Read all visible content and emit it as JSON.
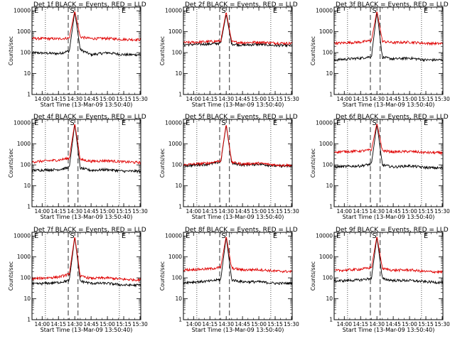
{
  "figure": {
    "background": "#ffffff"
  },
  "colors": {
    "events": "#000000",
    "lld": "#e00000",
    "frame": "#000000"
  },
  "chart_data": [
    {
      "type": "line",
      "title": "Det 1f BLACK = Events, RED = LLD",
      "xlabel": "Start Time (13-Mar-09 13:50:40)",
      "ylabel": "Counts/sec",
      "x_ticks": [
        "14:00",
        "14:15",
        "14:30",
        "14:45",
        "15:00",
        "15:15",
        "15:30"
      ],
      "y_ticks": [
        "1",
        "10",
        "100",
        "1000",
        "10000"
      ],
      "xlim": [
        "13:50:40",
        "15:30:40"
      ],
      "ylim": [
        1,
        15000
      ],
      "yscale": "log",
      "markers": {
        "S": "14:27",
        "E": "15:11"
      },
      "series": [
        {
          "name": "Events",
          "color": "#000000",
          "x": [
            "13:51",
            "14:15",
            "14:25",
            "14:30",
            "14:35",
            "14:45",
            "15:00",
            "15:15",
            "15:30"
          ],
          "y": [
            100,
            90,
            120,
            9000,
            140,
            80,
            100,
            80,
            80
          ]
        },
        {
          "name": "LLD",
          "color": "#e00000",
          "x": [
            "13:51",
            "14:15",
            "14:25",
            "14:30",
            "14:35",
            "14:45",
            "15:00",
            "15:15",
            "15:30"
          ],
          "y": [
            480,
            460,
            500,
            10000,
            560,
            470,
            480,
            430,
            420
          ]
        }
      ]
    },
    {
      "type": "line",
      "title": "Det 2f BLACK = Events, RED = LLD",
      "xlabel": "Start Time (13-Mar-09 13:50:40)",
      "ylabel": "Counts/sec",
      "x_ticks": [
        "14:00",
        "14:15",
        "14:30",
        "14:45",
        "15:00",
        "15:15",
        "15:30"
      ],
      "y_ticks": [
        "1",
        "10",
        "100",
        "1000",
        "10000"
      ],
      "xlim": [
        "13:50:40",
        "15:30:40"
      ],
      "ylim": [
        1,
        15000
      ],
      "yscale": "log",
      "markers": {
        "S": "14:27",
        "E": "15:11"
      },
      "series": [
        {
          "name": "Events",
          "color": "#000000",
          "x": [
            "13:51",
            "14:15",
            "14:25",
            "14:30",
            "14:35",
            "14:45",
            "15:00",
            "15:15",
            "15:30"
          ],
          "y": [
            240,
            260,
            280,
            7000,
            260,
            230,
            250,
            220,
            220
          ]
        },
        {
          "name": "LLD",
          "color": "#e00000",
          "x": [
            "13:51",
            "14:15",
            "14:25",
            "14:30",
            "14:35",
            "14:45",
            "15:00",
            "15:15",
            "15:30"
          ],
          "y": [
            300,
            340,
            360,
            9000,
            330,
            300,
            320,
            290,
            280
          ]
        }
      ]
    },
    {
      "type": "line",
      "title": "Det 3f BLACK = Events, RED = LLD",
      "xlabel": "Start Time (13-Mar-09 13:50:40)",
      "ylabel": "Counts/sec",
      "x_ticks": [
        "14:00",
        "14:15",
        "14:30",
        "14:45",
        "15:00",
        "15:15",
        "15:30"
      ],
      "y_ticks": [
        "1",
        "10",
        "100",
        "1000",
        "10000"
      ],
      "xlim": [
        "13:50:40",
        "15:30:40"
      ],
      "ylim": [
        1,
        15000
      ],
      "yscale": "log",
      "markers": {
        "S": "14:27",
        "E": "15:11"
      },
      "series": [
        {
          "name": "Events",
          "color": "#000000",
          "x": [
            "13:51",
            "14:15",
            "14:25",
            "14:30",
            "14:35",
            "14:45",
            "15:00",
            "15:15",
            "15:30"
          ],
          "y": [
            45,
            55,
            65,
            9000,
            60,
            50,
            55,
            45,
            45
          ]
        },
        {
          "name": "LLD",
          "color": "#e00000",
          "x": [
            "13:51",
            "14:15",
            "14:25",
            "14:30",
            "14:35",
            "14:45",
            "15:00",
            "15:15",
            "15:30"
          ],
          "y": [
            280,
            320,
            380,
            10000,
            350,
            300,
            320,
            280,
            270
          ]
        }
      ]
    },
    {
      "type": "line",
      "title": "Det 4f BLACK = Events, RED = LLD",
      "xlabel": "Start Time (13-Mar-09 13:50:40)",
      "ylabel": "Counts/sec",
      "x_ticks": [
        "14:00",
        "14:15",
        "14:30",
        "14:45",
        "15:00",
        "15:15",
        "15:30"
      ],
      "y_ticks": [
        "1",
        "10",
        "100",
        "1000",
        "10000"
      ],
      "xlim": [
        "13:50:40",
        "15:30:40"
      ],
      "ylim": [
        1,
        15000
      ],
      "yscale": "log",
      "markers": {
        "S": "14:27",
        "E": "15:11"
      },
      "series": [
        {
          "name": "Events",
          "color": "#000000",
          "x": [
            "13:51",
            "14:15",
            "14:25",
            "14:30",
            "14:35",
            "14:45",
            "15:00",
            "15:15",
            "15:30"
          ],
          "y": [
            55,
            60,
            75,
            9000,
            70,
            55,
            60,
            50,
            50
          ]
        },
        {
          "name": "LLD",
          "color": "#e00000",
          "x": [
            "13:51",
            "14:15",
            "14:25",
            "14:30",
            "14:35",
            "14:45",
            "15:00",
            "15:15",
            "15:30"
          ],
          "y": [
            140,
            170,
            210,
            10000,
            180,
            150,
            160,
            140,
            130
          ]
        }
      ]
    },
    {
      "type": "line",
      "title": "Det 5f BLACK = Events, RED = LLD",
      "xlabel": "Start Time (13-Mar-09 13:50:40)",
      "ylabel": "Counts/sec",
      "x_ticks": [
        "14:00",
        "14:15",
        "14:30",
        "14:45",
        "15:00",
        "15:15",
        "15:30"
      ],
      "y_ticks": [
        "1",
        "10",
        "100",
        "1000",
        "10000"
      ],
      "xlim": [
        "13:50:40",
        "15:30:40"
      ],
      "ylim": [
        1,
        15000
      ],
      "yscale": "log",
      "markers": {
        "S": "14:27",
        "E": "15:11"
      },
      "series": [
        {
          "name": "Events",
          "color": "#000000",
          "x": [
            "13:51",
            "14:15",
            "14:25",
            "14:30",
            "14:35",
            "14:45",
            "15:00",
            "15:15",
            "15:30"
          ],
          "y": [
            90,
            110,
            140,
            8000,
            120,
            100,
            110,
            90,
            85
          ]
        },
        {
          "name": "LLD",
          "color": "#e00000",
          "x": [
            "13:51",
            "14:15",
            "14:25",
            "14:30",
            "14:35",
            "14:45",
            "15:00",
            "15:15",
            "15:30"
          ],
          "y": [
            100,
            125,
            160,
            9000,
            135,
            110,
            120,
            100,
            95
          ]
        }
      ]
    },
    {
      "type": "line",
      "title": "Det 6f BLACK = Events, RED = LLD",
      "xlabel": "Start Time (13-Mar-09 13:50:40)",
      "ylabel": "Counts/sec",
      "x_ticks": [
        "14:00",
        "14:15",
        "14:30",
        "14:45",
        "15:00",
        "15:15",
        "15:30"
      ],
      "y_ticks": [
        "1",
        "10",
        "100",
        "1000",
        "10000"
      ],
      "xlim": [
        "13:50:40",
        "15:30:40"
      ],
      "ylim": [
        1,
        15000
      ],
      "yscale": "log",
      "markers": {
        "S": "14:27",
        "E": "15:11"
      },
      "series": [
        {
          "name": "Events",
          "color": "#000000",
          "x": [
            "13:51",
            "14:15",
            "14:25",
            "14:30",
            "14:35",
            "14:45",
            "15:00",
            "15:15",
            "15:30"
          ],
          "y": [
            80,
            90,
            110,
            9000,
            100,
            80,
            90,
            75,
            70
          ]
        },
        {
          "name": "LLD",
          "color": "#e00000",
          "x": [
            "13:51",
            "14:15",
            "14:25",
            "14:30",
            "14:35",
            "14:45",
            "15:00",
            "15:15",
            "15:30"
          ],
          "y": [
            420,
            460,
            520,
            10000,
            480,
            420,
            440,
            390,
            380
          ]
        }
      ]
    },
    {
      "type": "line",
      "title": "Det 7f BLACK = Events, RED = LLD",
      "xlabel": "Start Time (13-Mar-09 13:50:40)",
      "ylabel": "Counts/sec",
      "x_ticks": [
        "14:00",
        "14:15",
        "14:30",
        "14:45",
        "15:00",
        "15:15",
        "15:30"
      ],
      "y_ticks": [
        "1",
        "10",
        "100",
        "1000",
        "10000"
      ],
      "xlim": [
        "13:50:40",
        "15:30:40"
      ],
      "ylim": [
        1,
        15000
      ],
      "yscale": "log",
      "markers": {
        "S": "14:27",
        "E": "15:11"
      },
      "series": [
        {
          "name": "Events",
          "color": "#000000",
          "x": [
            "13:51",
            "14:15",
            "14:25",
            "14:30",
            "14:35",
            "14:45",
            "15:00",
            "15:15",
            "15:30"
          ],
          "y": [
            50,
            60,
            75,
            9000,
            70,
            55,
            55,
            45,
            45
          ]
        },
        {
          "name": "LLD",
          "color": "#e00000",
          "x": [
            "13:51",
            "14:15",
            "14:25",
            "14:30",
            "14:35",
            "14:45",
            "15:00",
            "15:15",
            "15:30"
          ],
          "y": [
            90,
            110,
            150,
            10000,
            120,
            95,
            100,
            85,
            80
          ]
        }
      ]
    },
    {
      "type": "line",
      "title": "Det 8f BLACK = Events, RED = LLD",
      "xlabel": "Start Time (13-Mar-09 13:50:40)",
      "ylabel": "Counts/sec",
      "x_ticks": [
        "14:00",
        "14:15",
        "14:30",
        "14:45",
        "15:00",
        "15:15",
        "15:30"
      ],
      "y_ticks": [
        "1",
        "10",
        "100",
        "1000",
        "10000"
      ],
      "xlim": [
        "13:50:40",
        "15:30:40"
      ],
      "ylim": [
        1,
        15000
      ],
      "yscale": "log",
      "markers": {
        "S": "14:27",
        "E": "15:11"
      },
      "series": [
        {
          "name": "Events",
          "color": "#000000",
          "x": [
            "13:51",
            "14:15",
            "14:25",
            "14:30",
            "14:35",
            "14:45",
            "15:00",
            "15:15",
            "15:30"
          ],
          "y": [
            60,
            70,
            85,
            9000,
            80,
            65,
            65,
            55,
            55
          ]
        },
        {
          "name": "LLD",
          "color": "#e00000",
          "x": [
            "13:51",
            "14:15",
            "14:25",
            "14:30",
            "14:35",
            "14:45",
            "15:00",
            "15:15",
            "15:30"
          ],
          "y": [
            240,
            270,
            320,
            10000,
            290,
            240,
            250,
            210,
            200
          ]
        }
      ]
    },
    {
      "type": "line",
      "title": "Det 9f BLACK = Events, RED = LLD",
      "xlabel": "Start Time (13-Mar-09 13:50:40)",
      "ylabel": "Counts/sec",
      "x_ticks": [
        "14:00",
        "14:15",
        "14:30",
        "14:45",
        "15:00",
        "15:15",
        "15:30"
      ],
      "y_ticks": [
        "1",
        "10",
        "100",
        "1000",
        "10000"
      ],
      "xlim": [
        "13:50:40",
        "15:30:40"
      ],
      "ylim": [
        1,
        15000
      ],
      "yscale": "log",
      "markers": {
        "S": "14:27",
        "E": "15:11"
      },
      "series": [
        {
          "name": "Events",
          "color": "#000000",
          "x": [
            "13:51",
            "14:15",
            "14:25",
            "14:30",
            "14:35",
            "14:45",
            "15:00",
            "15:15",
            "15:30"
          ],
          "y": [
            70,
            80,
            95,
            9000,
            90,
            75,
            75,
            65,
            60
          ]
        },
        {
          "name": "LLD",
          "color": "#e00000",
          "x": [
            "13:51",
            "14:15",
            "14:25",
            "14:30",
            "14:35",
            "14:45",
            "15:00",
            "15:15",
            "15:30"
          ],
          "y": [
            220,
            260,
            310,
            10000,
            280,
            230,
            240,
            200,
            190
          ]
        }
      ]
    }
  ]
}
